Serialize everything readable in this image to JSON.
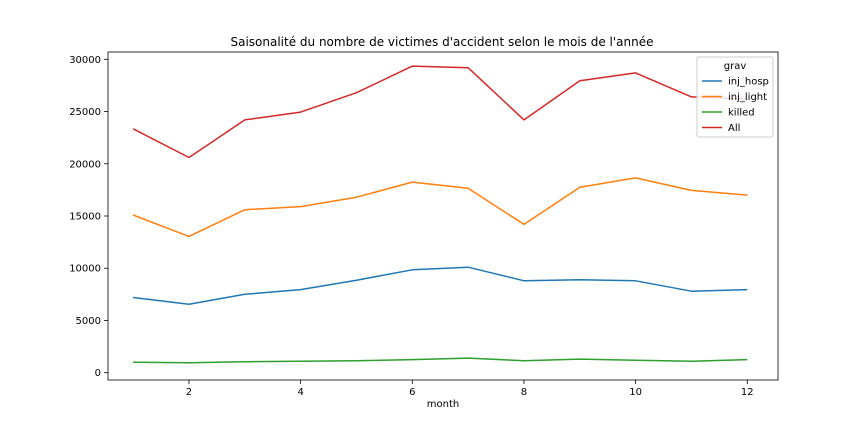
{
  "chart_data": {
    "type": "line",
    "title": "Saisonalité du nombre de victimes d'accident selon le mois de l'année",
    "xlabel": "month",
    "ylabel": "",
    "x": [
      1,
      2,
      3,
      4,
      5,
      6,
      7,
      8,
      9,
      10,
      11,
      12
    ],
    "xlim": [
      0.55,
      12.55
    ],
    "ylim": [
      -700,
      30700
    ],
    "xticks": [
      2,
      4,
      6,
      8,
      10,
      12
    ],
    "yticks": [
      0,
      5000,
      10000,
      15000,
      20000,
      25000,
      30000
    ],
    "grid": false,
    "legend": {
      "title": "grav",
      "placement": "top-right"
    },
    "series": [
      {
        "name": "inj_hosp",
        "color": "#1f77b4",
        "values": [
          7200,
          6550,
          7500,
          7950,
          8850,
          9850,
          10100,
          8800,
          8900,
          8800,
          7800,
          7950
        ]
      },
      {
        "name": "inj_light",
        "color": "#ff7f0e",
        "values": [
          15100,
          13050,
          15600,
          15900,
          16800,
          18250,
          17650,
          14200,
          17750,
          18650,
          17450,
          17000
        ]
      },
      {
        "name": "killed",
        "color": "#2ca02c",
        "values": [
          1000,
          950,
          1050,
          1100,
          1150,
          1250,
          1400,
          1150,
          1300,
          1200,
          1100,
          1250
        ]
      },
      {
        "name": "All",
        "color": "#d62728",
        "values": [
          23350,
          20600,
          24200,
          24950,
          26800,
          29350,
          29200,
          24200,
          27950,
          28700,
          26400,
          26200
        ]
      }
    ]
  }
}
